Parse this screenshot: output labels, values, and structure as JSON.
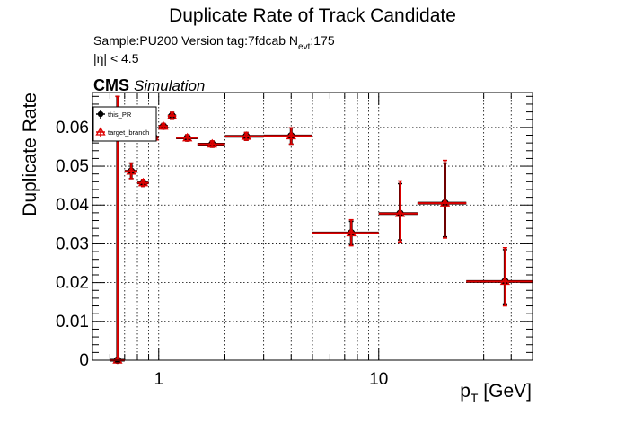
{
  "chart_data": {
    "type": "scatter",
    "title": "Duplicate Rate of Track Candidate",
    "subtitle": {
      "sample_line": "Sample:PU200   Version tag:7fdcab  N",
      "nevt_sub": "evt",
      "nevt_value": ":175",
      "eta_line": "|η| < 4.5"
    },
    "experiment": {
      "cms": "CMS",
      "simulation": "Simulation"
    },
    "xlabel": {
      "p": "p",
      "sub": "T",
      "unit": " [GeV]"
    },
    "ylabel": "Duplicate Rate",
    "x_scale": "log",
    "xlim": [
      0.5,
      50
    ],
    "ylim": [
      0,
      0.069
    ],
    "x_ticks": [
      1,
      10
    ],
    "x_tick_labels": [
      "1",
      "10"
    ],
    "y_ticks": [
      0,
      0.01,
      0.02,
      0.03,
      0.04,
      0.05,
      0.06
    ],
    "y_tick_labels": [
      "0",
      "0.01",
      "0.02",
      "0.03",
      "0.04",
      "0.05",
      "0.06"
    ],
    "grid": true,
    "legend_position": "top-left",
    "series": [
      {
        "name": "this_PR",
        "color": "#000000",
        "marker": "circle",
        "points": [
          {
            "x": 0.65,
            "xlo": 0.6,
            "xhi": 0.7,
            "y": 0.0,
            "ylo": 0.0,
            "yhi": 0.068
          },
          {
            "x": 0.75,
            "xlo": 0.7,
            "xhi": 0.8,
            "y": 0.0487,
            "ylo": 0.0468,
            "yhi": 0.0508
          },
          {
            "x": 0.85,
            "xlo": 0.8,
            "xhi": 0.9,
            "y": 0.0457,
            "ylo": 0.0448,
            "yhi": 0.0466
          },
          {
            "x": 0.95,
            "xlo": 0.9,
            "xhi": 1.0,
            "y": 0.0575,
            "ylo": 0.0568,
            "yhi": 0.0582
          },
          {
            "x": 1.05,
            "xlo": 1.0,
            "xhi": 1.1,
            "y": 0.0603,
            "ylo": 0.0596,
            "yhi": 0.061
          },
          {
            "x": 1.15,
            "xlo": 1.1,
            "xhi": 1.2,
            "y": 0.063,
            "ylo": 0.0621,
            "yhi": 0.0639
          },
          {
            "x": 1.35,
            "xlo": 1.2,
            "xhi": 1.5,
            "y": 0.0573,
            "ylo": 0.0565,
            "yhi": 0.0581
          },
          {
            "x": 1.75,
            "xlo": 1.5,
            "xhi": 2.0,
            "y": 0.0557,
            "ylo": 0.0549,
            "yhi": 0.0565
          },
          {
            "x": 2.5,
            "xlo": 2.0,
            "xhi": 3.0,
            "y": 0.0577,
            "ylo": 0.0567,
            "yhi": 0.0587
          },
          {
            "x": 4.0,
            "xlo": 3.0,
            "xhi": 5.0,
            "y": 0.0578,
            "ylo": 0.0557,
            "yhi": 0.0599
          },
          {
            "x": 7.5,
            "xlo": 5.0,
            "xhi": 10.0,
            "y": 0.0328,
            "ylo": 0.0298,
            "yhi": 0.0358
          },
          {
            "x": 12.5,
            "xlo": 10.0,
            "xhi": 15.0,
            "y": 0.0378,
            "ylo": 0.031,
            "yhi": 0.0455
          },
          {
            "x": 20.0,
            "xlo": 15.0,
            "xhi": 25.0,
            "y": 0.0405,
            "ylo": 0.0318,
            "yhi": 0.0508
          },
          {
            "x": 37.5,
            "xlo": 25.0,
            "xhi": 50.0,
            "y": 0.0203,
            "ylo": 0.0145,
            "yhi": 0.0285
          }
        ]
      },
      {
        "name": "target_branch",
        "color": "#dd0000",
        "marker": "triangle",
        "points": [
          {
            "x": 0.65,
            "xlo": 0.6,
            "xhi": 0.7,
            "y": 0.0,
            "ylo": 0.0,
            "yhi": 0.068
          },
          {
            "x": 0.75,
            "xlo": 0.7,
            "xhi": 0.8,
            "y": 0.0487,
            "ylo": 0.0468,
            "yhi": 0.0508
          },
          {
            "x": 0.85,
            "xlo": 0.8,
            "xhi": 0.9,
            "y": 0.0457,
            "ylo": 0.0448,
            "yhi": 0.0466
          },
          {
            "x": 0.95,
            "xlo": 0.9,
            "xhi": 1.0,
            "y": 0.0575,
            "ylo": 0.0568,
            "yhi": 0.0582
          },
          {
            "x": 1.05,
            "xlo": 1.0,
            "xhi": 1.1,
            "y": 0.0603,
            "ylo": 0.0596,
            "yhi": 0.061
          },
          {
            "x": 1.15,
            "xlo": 1.1,
            "xhi": 1.2,
            "y": 0.063,
            "ylo": 0.0621,
            "yhi": 0.0639
          },
          {
            "x": 1.35,
            "xlo": 1.2,
            "xhi": 1.5,
            "y": 0.0573,
            "ylo": 0.0565,
            "yhi": 0.0581
          },
          {
            "x": 1.75,
            "xlo": 1.5,
            "xhi": 2.0,
            "y": 0.0557,
            "ylo": 0.0549,
            "yhi": 0.0565
          },
          {
            "x": 2.5,
            "xlo": 2.0,
            "xhi": 3.0,
            "y": 0.0577,
            "ylo": 0.0567,
            "yhi": 0.0587
          },
          {
            "x": 4.0,
            "xlo": 3.0,
            "xhi": 5.0,
            "y": 0.0578,
            "ylo": 0.0557,
            "yhi": 0.0599
          },
          {
            "x": 7.5,
            "xlo": 5.0,
            "xhi": 10.0,
            "y": 0.0328,
            "ylo": 0.0295,
            "yhi": 0.0362
          },
          {
            "x": 12.5,
            "xlo": 10.0,
            "xhi": 15.0,
            "y": 0.0378,
            "ylo": 0.0305,
            "yhi": 0.0462
          },
          {
            "x": 20.0,
            "xlo": 15.0,
            "xhi": 25.0,
            "y": 0.0405,
            "ylo": 0.0315,
            "yhi": 0.0515
          },
          {
            "x": 37.5,
            "xlo": 25.0,
            "xhi": 50.0,
            "y": 0.0203,
            "ylo": 0.014,
            "yhi": 0.029
          }
        ]
      }
    ]
  }
}
